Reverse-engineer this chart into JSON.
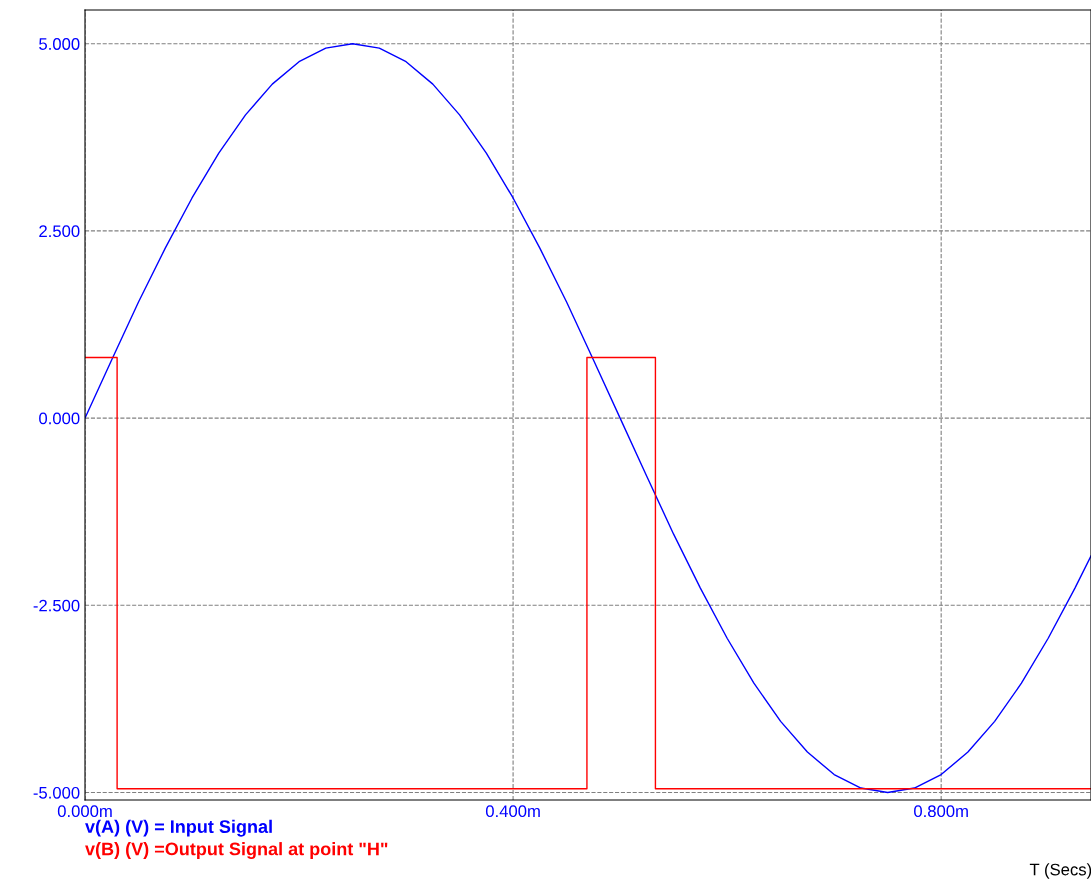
{
  "chart_data": {
    "type": "line",
    "xlabel": "T (Secs)",
    "xlim": [
      0,
      0.94
    ],
    "xticks": [
      {
        "value": 0,
        "label": "0.000m"
      },
      {
        "value": 0.4,
        "label": "0.400m"
      },
      {
        "value": 0.8,
        "label": "0.800m"
      }
    ],
    "ylim": [
      -5.1,
      5.45
    ],
    "yticks": [
      {
        "value": -5,
        "label": "-5.000"
      },
      {
        "value": -2.5,
        "label": "-2.500"
      },
      {
        "value": 0,
        "label": "0.000"
      },
      {
        "value": 2.5,
        "label": "2.500"
      },
      {
        "value": 5,
        "label": "5.000"
      }
    ],
    "grid": true,
    "legend": "bottom left",
    "line_style": "solid",
    "marker": "none",
    "series": [
      {
        "name": "v(A) (V) = Input Signal",
        "color": "#0000ff",
        "x": [
          0,
          0.025,
          0.05,
          0.075,
          0.1,
          0.125,
          0.15,
          0.175,
          0.2,
          0.225,
          0.25,
          0.275,
          0.3,
          0.325,
          0.35,
          0.375,
          0.4,
          0.425,
          0.45,
          0.475,
          0.5,
          0.525,
          0.55,
          0.575,
          0.6,
          0.625,
          0.65,
          0.675,
          0.7,
          0.725,
          0.75,
          0.775,
          0.8,
          0.825,
          0.85,
          0.875,
          0.9,
          0.925,
          0.94
        ],
        "values": [
          0,
          0.78,
          1.55,
          2.27,
          2.94,
          3.54,
          4.05,
          4.46,
          4.76,
          4.94,
          5.0,
          4.94,
          4.76,
          4.46,
          4.05,
          3.54,
          2.94,
          2.27,
          1.55,
          0.78,
          0,
          -0.78,
          -1.55,
          -2.27,
          -2.94,
          -3.54,
          -4.05,
          -4.46,
          -4.76,
          -4.94,
          -5.0,
          -4.94,
          -4.76,
          -4.46,
          -4.05,
          -3.54,
          -2.94,
          -2.27,
          -1.84
        ]
      },
      {
        "name": "v(B) (V) =Output Signal at point \"H\"",
        "color": "#ff0000",
        "type": "step",
        "x": [
          0,
          0.03,
          0.469,
          0.533,
          0.94
        ],
        "values": [
          0.81,
          -4.95,
          0.81,
          -4.95,
          -4.95
        ]
      }
    ]
  }
}
